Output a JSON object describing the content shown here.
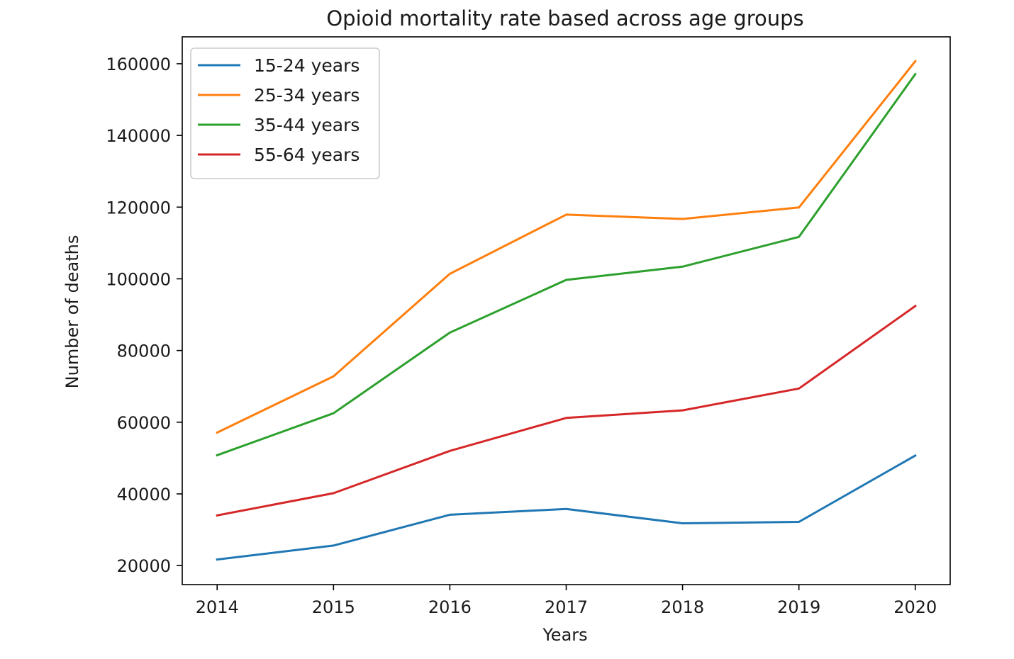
{
  "chart_data": {
    "type": "line",
    "title": "Opioid mortality rate based across age groups",
    "xlabel": "Years",
    "ylabel": "Number of deaths",
    "x": [
      2014,
      2015,
      2016,
      2017,
      2018,
      2019,
      2020
    ],
    "xlim": [
      2013.7,
      2020.3
    ],
    "ylim": [
      14700,
      167500
    ],
    "yticks": [
      20000,
      40000,
      60000,
      80000,
      100000,
      120000,
      140000,
      160000
    ],
    "xticks": [
      2014,
      2015,
      2016,
      2017,
      2018,
      2019,
      2020
    ],
    "grid": false,
    "legend_position": "upper-left",
    "series": [
      {
        "name": "15-24 years",
        "color": "#1f77b4",
        "values": [
          21700,
          25600,
          34200,
          35800,
          31800,
          32200,
          50700
        ]
      },
      {
        "name": "25-34 years",
        "color": "#ff7f0e",
        "values": [
          57100,
          72800,
          101400,
          117900,
          116700,
          119900,
          160700
        ]
      },
      {
        "name": "35-44 years",
        "color": "#2ca02c",
        "values": [
          50800,
          62500,
          85000,
          99700,
          103400,
          111700,
          157100
        ]
      },
      {
        "name": "55-64 years",
        "color": "#d62728",
        "values": [
          34000,
          40200,
          52000,
          61200,
          63300,
          69400,
          92400
        ]
      }
    ]
  }
}
